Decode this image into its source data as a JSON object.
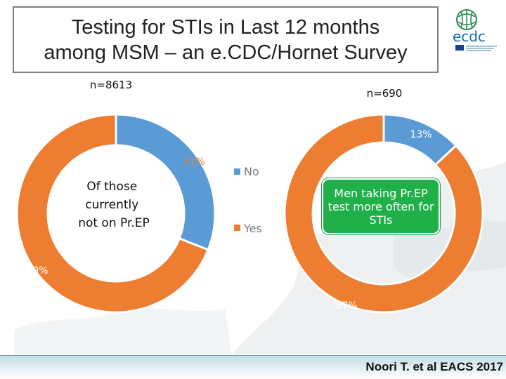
{
  "title": "Testing for STIs in Last 12 months\namong MSM – an e.CDC/Hornet Survey",
  "logo": {
    "icon": "ecdc-logo-icon",
    "text": "ecdc"
  },
  "colors": {
    "no": "#5b9bd5",
    "yes": "#ed7d31",
    "callout": "#1fb04a",
    "brand": "#1b6ca8"
  },
  "chart_data": [
    {
      "type": "pie",
      "subtitle": "n=8613",
      "center_label": "Of those\ncurrently\nnot on Pr.EP",
      "categories": [
        "No",
        "Yes"
      ],
      "values": [
        31,
        69
      ],
      "data_labels": [
        "31%",
        "69%"
      ]
    },
    {
      "type": "pie",
      "subtitle": "n=690",
      "center_label": "",
      "categories": [
        "No",
        "Yes"
      ],
      "values": [
        13,
        87
      ],
      "data_labels": [
        "13%",
        "87%"
      ]
    }
  ],
  "legend": {
    "placement": "between charts",
    "items": [
      {
        "label": "No",
        "color": "#5b9bd5"
      },
      {
        "label": "Yes",
        "color": "#ed7d31"
      }
    ]
  },
  "callout": "Men taking Pr.EP\ntest more often for\nSTIs",
  "citation": "Noori T. et al EACS 2017"
}
